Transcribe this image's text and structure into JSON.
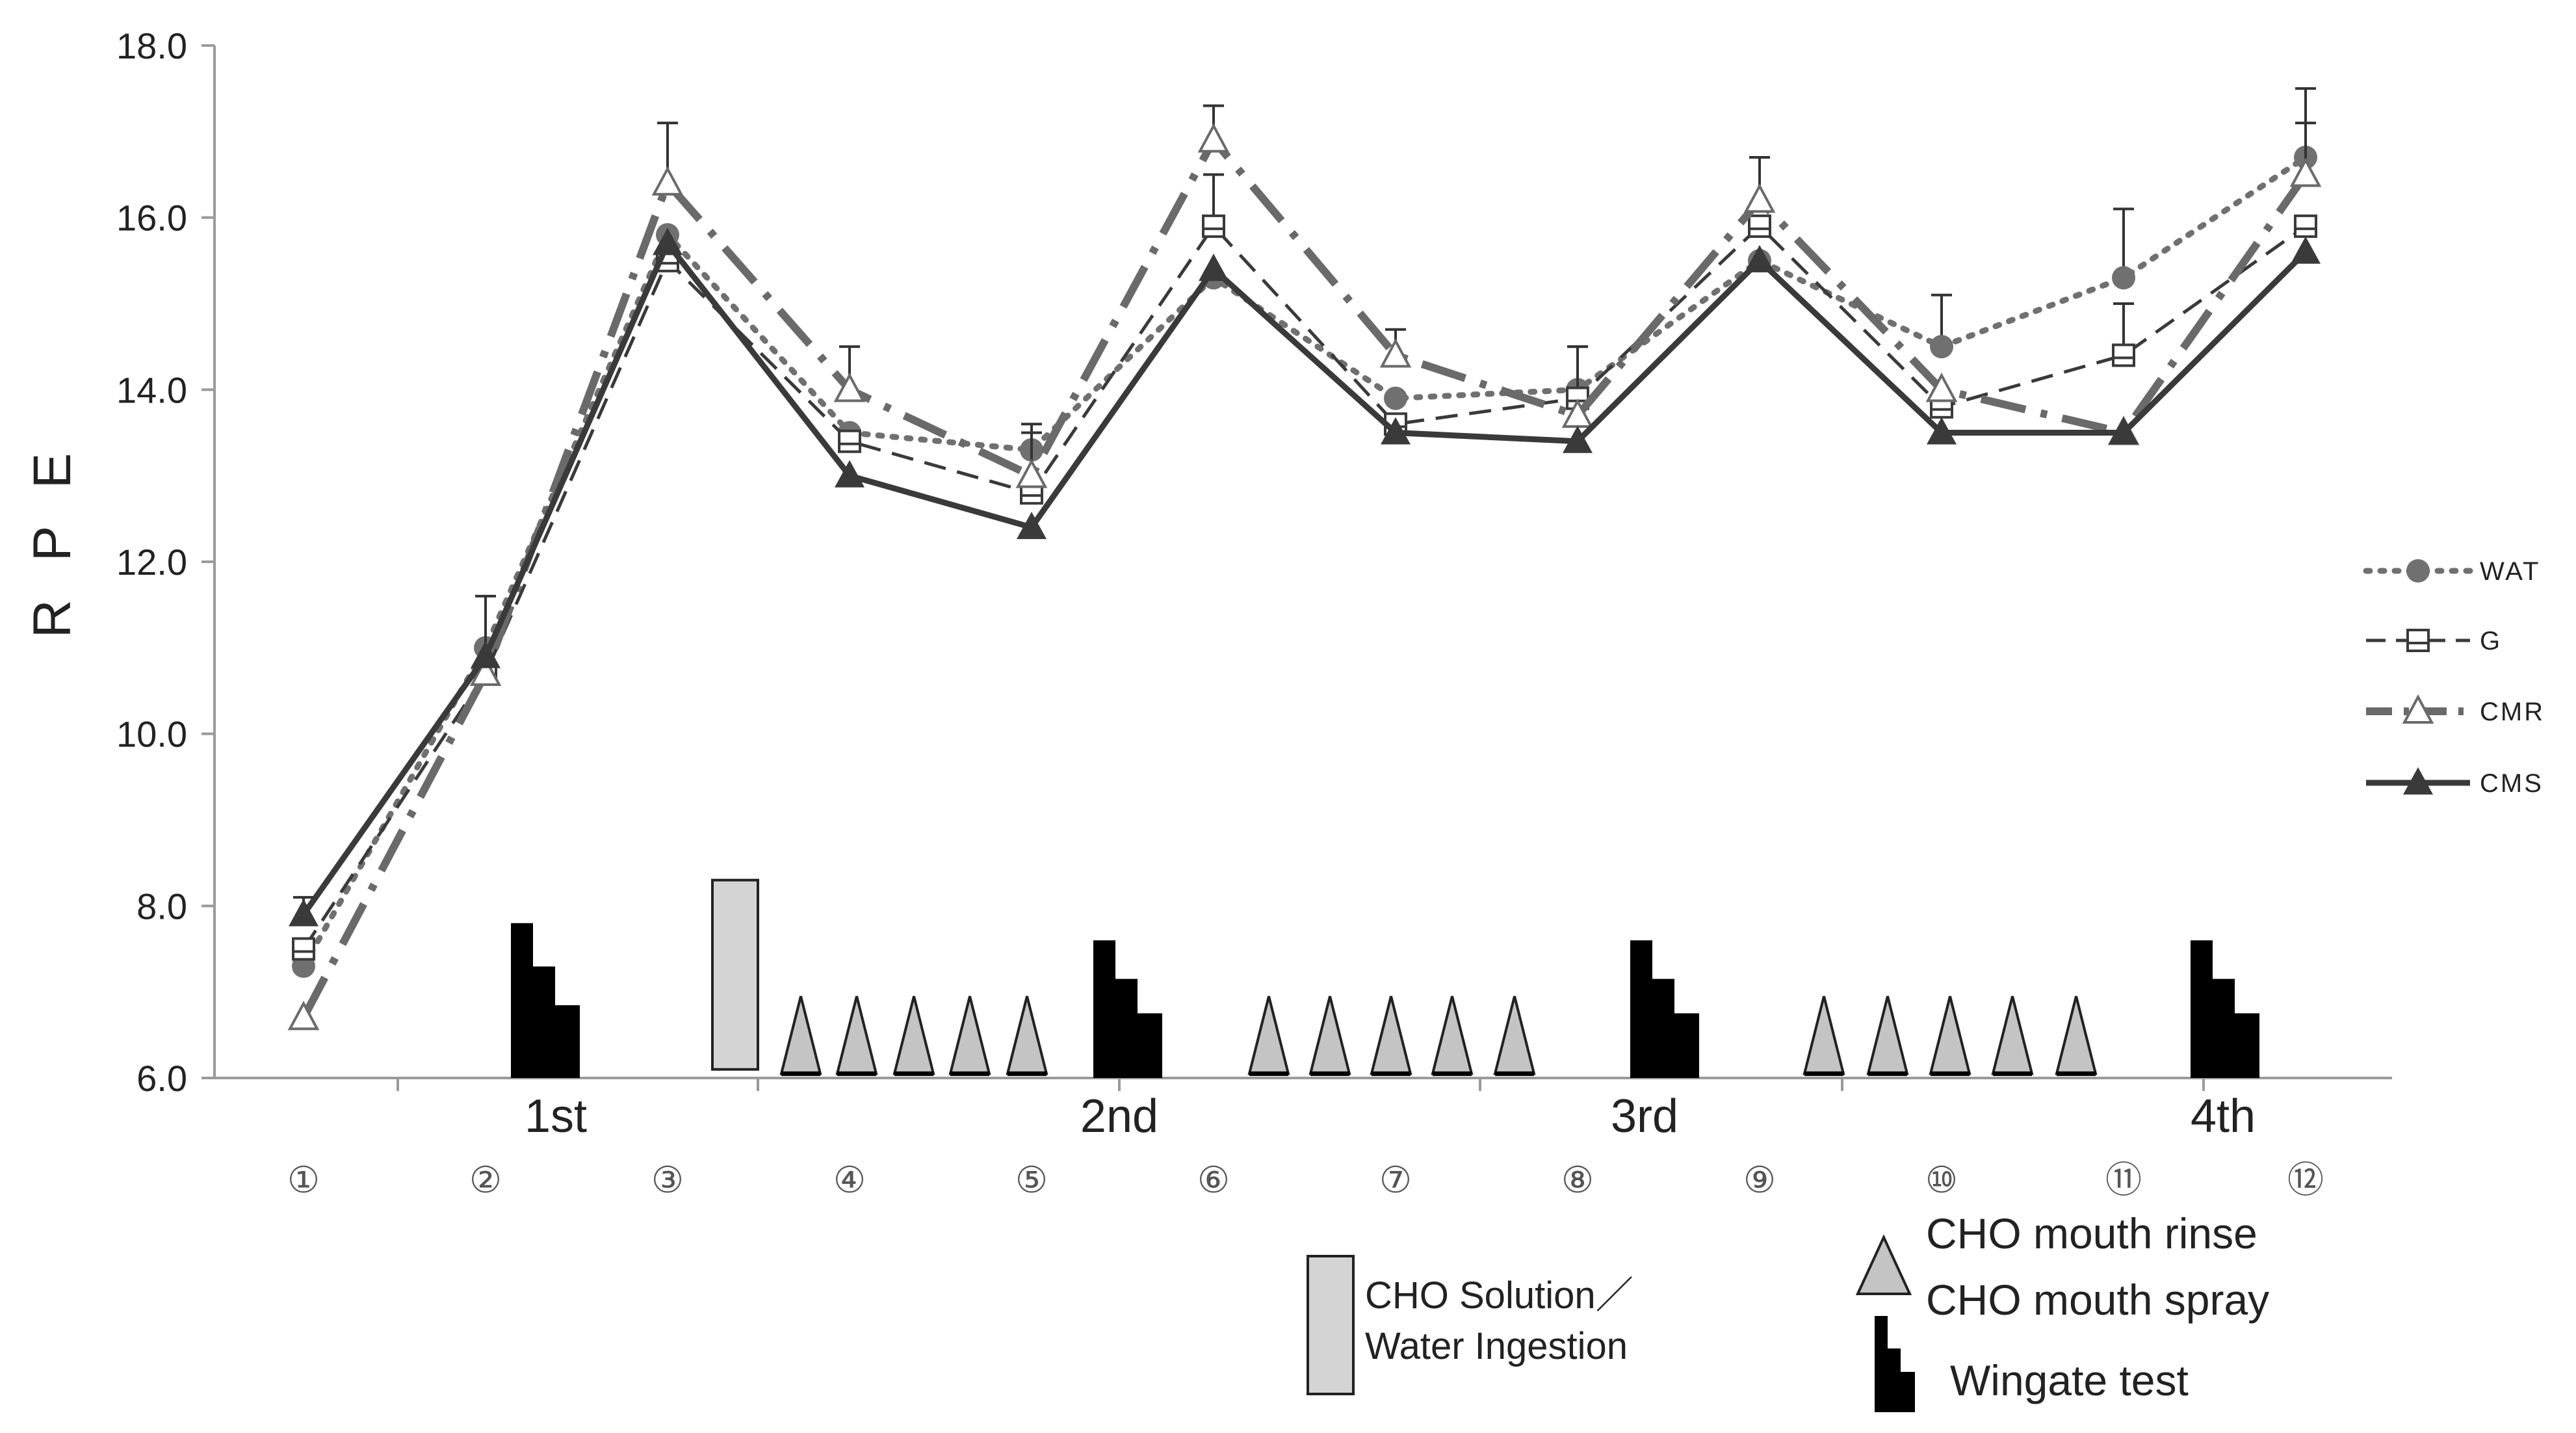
{
  "chart_data": {
    "type": "line",
    "title": "",
    "xlabel": "",
    "ylabel": "R P E",
    "ylim": [
      6.0,
      18.0
    ],
    "y_ticks": [
      "6.0",
      "8.0",
      "10.0",
      "12.0",
      "14.0",
      "16.0",
      "18.0"
    ],
    "x": [
      "①",
      "②",
      "③",
      "④",
      "⑤",
      "⑥",
      "⑦",
      "⑧",
      "⑨",
      "⑩",
      "⑪",
      "⑫"
    ],
    "bout_labels": [
      "1st",
      "2nd",
      "3rd",
      "4th"
    ],
    "series": [
      {
        "name": "WAT",
        "marker": "circle",
        "dash": "dotted",
        "values": [
          7.3,
          11.0,
          15.8,
          13.5,
          13.3,
          15.3,
          13.9,
          14.0,
          15.5,
          14.5,
          15.3,
          16.7
        ],
        "errors": [
          0.0,
          0.0,
          0.0,
          0.0,
          0.3,
          0.0,
          0.0,
          0.5,
          0.0,
          0.6,
          0.8,
          0.8
        ]
      },
      {
        "name": "G",
        "marker": "open-square",
        "dash": "dashed",
        "values": [
          7.5,
          10.7,
          15.5,
          13.4,
          12.8,
          15.9,
          13.6,
          13.9,
          15.9,
          13.8,
          14.4,
          15.9
        ],
        "errors": [
          0.0,
          0.0,
          0.0,
          0.0,
          0.0,
          0.6,
          0.0,
          0.6,
          0.0,
          0.0,
          0.6,
          0.0
        ]
      },
      {
        "name": "CMR",
        "marker": "open-triangle",
        "dash": "long-dash-dot",
        "values": [
          6.7,
          10.7,
          16.4,
          14.0,
          13.0,
          16.9,
          14.4,
          13.7,
          16.2,
          14.0,
          13.5,
          16.5
        ],
        "errors": [
          0.0,
          0.0,
          0.7,
          0.5,
          0.5,
          0.4,
          0.3,
          0.0,
          0.5,
          0.0,
          0.0,
          0.6
        ]
      },
      {
        "name": "CMS",
        "marker": "filled-triangle",
        "dash": "solid",
        "values": [
          7.9,
          10.9,
          15.7,
          13.0,
          12.4,
          15.4,
          13.5,
          13.4,
          15.5,
          13.5,
          13.5,
          15.6
        ],
        "errors": [
          0.2,
          0.7,
          0.0,
          0.0,
          0.0,
          0.0,
          0.0,
          0.0,
          0.0,
          0.0,
          0.0,
          0.0
        ]
      }
    ],
    "legend_position": "right",
    "key": {
      "solution_label_line1": "CHO Solution／",
      "solution_label_line2": "Water  Ingestion",
      "rinse_label_line1": "CHO mouth rinse",
      "rinse_label_line2": "CHO mouth spray",
      "wingate_label": "Wingate test"
    }
  },
  "colors": {
    "WAT": "#707070",
    "G": "#3a3a3a",
    "CMR": "#6a6a6a",
    "CMS": "#3a3a3a",
    "axis": "#9a9a9a",
    "triangle_fill": "#c4c4c4",
    "solution_fill": "#d4d4d4",
    "wingate_fill": "#000000"
  }
}
